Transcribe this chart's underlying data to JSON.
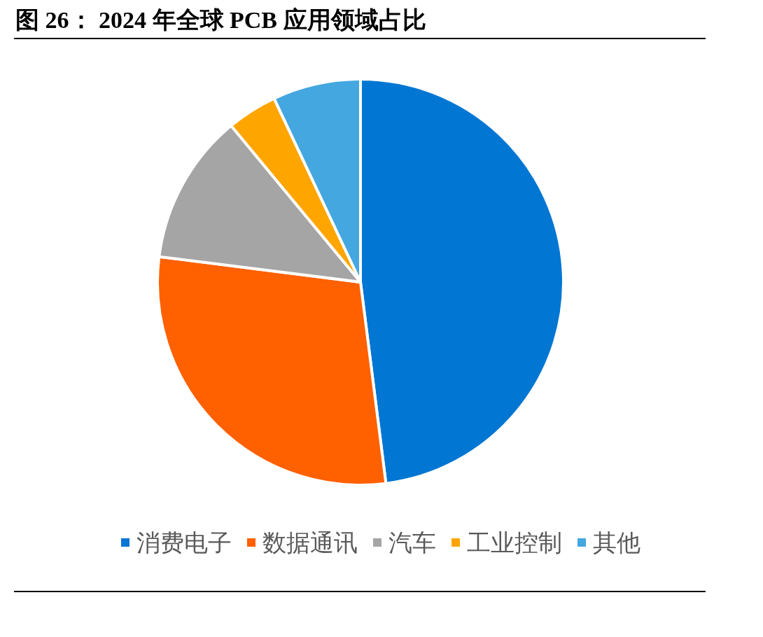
{
  "chart_data": {
    "type": "pie",
    "title": "图 26：  2024 年全球 PCB 应用领域占比",
    "categories": [
      "消费电子",
      "数据通讯",
      "汽车",
      "工业控制",
      "其他"
    ],
    "values": [
      48,
      29,
      12,
      4,
      7
    ],
    "colors": [
      "#0176d3",
      "#ff6000",
      "#a5a5a5",
      "#ffa500",
      "#44a7e0"
    ],
    "legend": "bottom"
  }
}
